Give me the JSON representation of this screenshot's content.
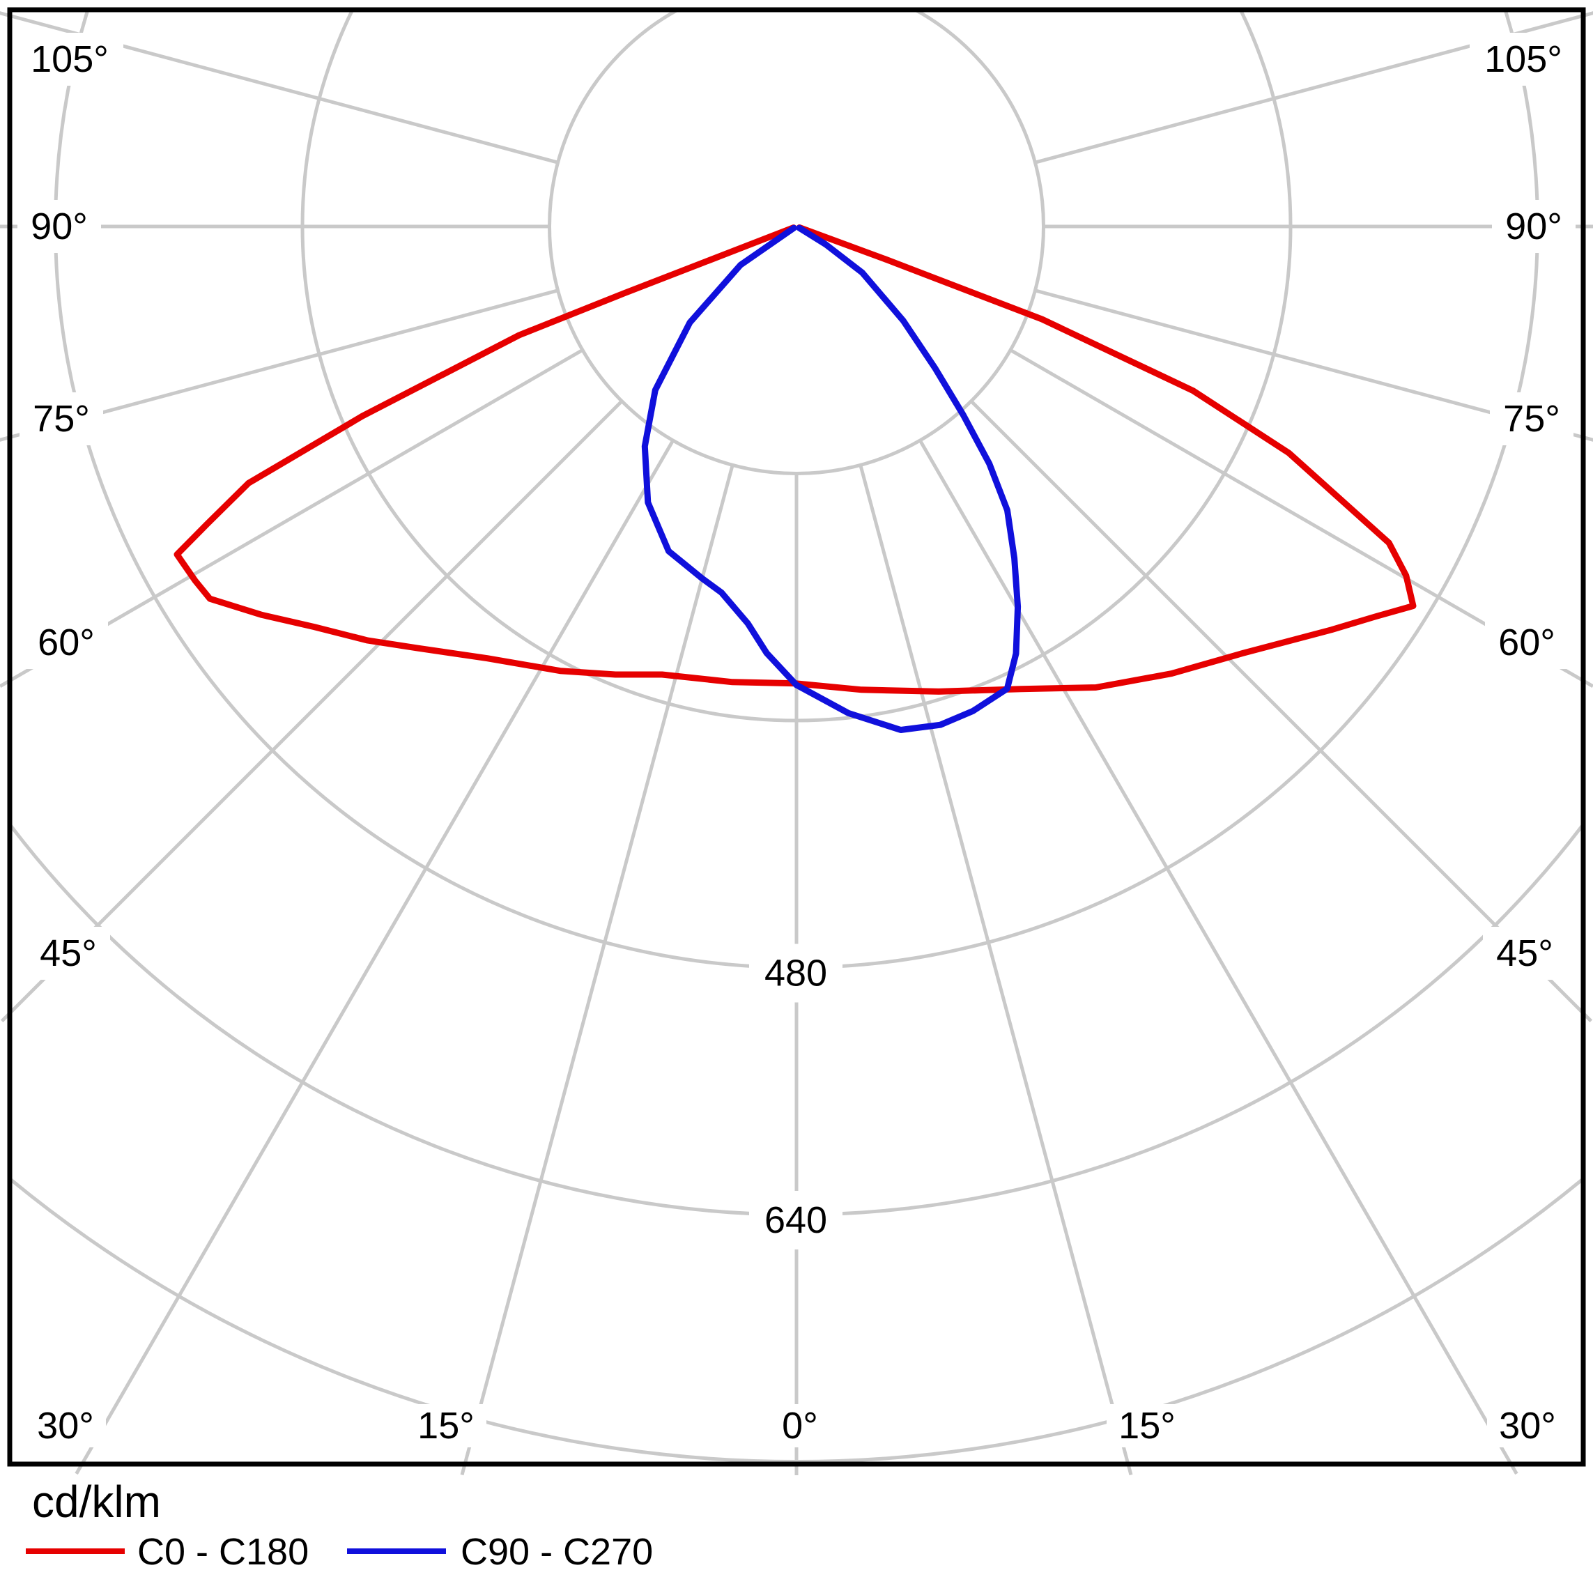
{
  "figure": {
    "unit_label": "cd/klm"
  },
  "legend": {
    "items": [
      {
        "label": "C0 - C180",
        "color": "#e60000"
      },
      {
        "label": "C90 - C270",
        "color": "#1010dc"
      }
    ]
  },
  "chart_data": {
    "type": "line",
    "subtype": "polar-luminous-intensity-distribution",
    "title": "",
    "units": "cd/klm",
    "angle_ticks_deg": [
      0,
      15,
      30,
      45,
      60,
      75,
      90,
      105
    ],
    "angle_label_suffix": "°",
    "radial_rings": [
      160,
      320,
      480,
      640,
      800
    ],
    "radial_ring_labels_shown": [
      480,
      640
    ],
    "rmax": 800,
    "grid": true,
    "grid_color": "#c9c9c9",
    "legend_position": "bottom-left",
    "series": [
      {
        "name": "C0 - C180",
        "color": "#e60000",
        "points_gamma_deg_value": [
          [
            -69,
            2
          ],
          [
            -68.8,
            120
          ],
          [
            -68.6,
            193
          ],
          [
            -66.4,
            307
          ],
          [
            -64.9,
            392
          ],
          [
            -63.2,
            428
          ],
          [
            -62.1,
            454
          ],
          [
            -59.5,
            452
          ],
          [
            -57.6,
            450
          ],
          [
            -54,
            428
          ],
          [
            -50.3,
            406
          ],
          [
            -46,
            386
          ],
          [
            -41.9,
            367
          ],
          [
            -35.6,
            344
          ],
          [
            -28,
            326
          ],
          [
            -22,
            313
          ],
          [
            -16.7,
            303
          ],
          [
            -8,
            298
          ],
          [
            0,
            296
          ],
          [
            8,
            303
          ],
          [
            17,
            315
          ],
          [
            25.9,
            333
          ],
          [
            33,
            356
          ],
          [
            40,
            378
          ],
          [
            46.3,
            400
          ],
          [
            53,
            434
          ],
          [
            56,
            452
          ],
          [
            58.4,
            469
          ],
          [
            60.2,
            455
          ],
          [
            61.9,
            435
          ],
          [
            65.3,
            351
          ],
          [
            67.5,
            278
          ],
          [
            69.3,
            170
          ],
          [
            69.8,
            60
          ],
          [
            70,
            2
          ]
        ]
      },
      {
        "name": "C90 - C270",
        "color": "#1010dc",
        "points_gamma_deg_value": [
          [
            -60,
            2
          ],
          [
            -55.5,
            44
          ],
          [
            -48,
            93
          ],
          [
            -40.8,
            140
          ],
          [
            -34.6,
            173
          ],
          [
            -28.3,
            203
          ],
          [
            -21.5,
            226
          ],
          [
            -15,
            236
          ],
          [
            -11.6,
            242
          ],
          [
            -7,
            259
          ],
          [
            -4,
            277
          ],
          [
            0,
            297
          ],
          [
            6.1,
            317
          ],
          [
            11.7,
            333
          ],
          [
            16.1,
            336
          ],
          [
            20,
            334
          ],
          [
            24.5,
            329
          ],
          [
            27.2,
            311
          ],
          [
            30.2,
            285
          ],
          [
            33.3,
            257
          ],
          [
            36.6,
            229
          ],
          [
            39.1,
            198
          ],
          [
            41.5,
            163
          ],
          [
            44.4,
            128
          ],
          [
            48.6,
            92
          ],
          [
            54.9,
            52
          ],
          [
            58.5,
            22
          ],
          [
            61,
            2
          ]
        ]
      }
    ]
  }
}
